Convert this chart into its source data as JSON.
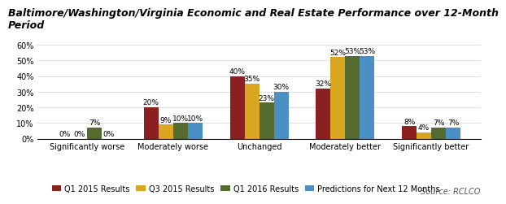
{
  "title_line1": "Baltimore/Washington/Virginia Economic and Real Estate Performance over 12-Month",
  "title_line2": "Period",
  "categories": [
    "Significantly worse",
    "Moderately worse",
    "Unchanged",
    "Moderately better",
    "Significantly better"
  ],
  "series": {
    "Q1 2015 Results": [
      0,
      20,
      40,
      32,
      8
    ],
    "Q3 2015 Results": [
      0,
      9,
      35,
      52,
      4
    ],
    "Q1 2016 Results": [
      7,
      10,
      23,
      53,
      7
    ],
    "Predictions for Next 12 Months": [
      0,
      10,
      30,
      53,
      7
    ]
  },
  "series_order": [
    "Q1 2015 Results",
    "Q3 2015 Results",
    "Q1 2016 Results",
    "Predictions for Next 12 Months"
  ],
  "colors": {
    "Q1 2015 Results": "#8B2020",
    "Q3 2015 Results": "#DAA520",
    "Q1 2016 Results": "#556B2F",
    "Predictions for Next 12 Months": "#4A90C4"
  },
  "ylim": [
    0,
    65
  ],
  "yticks": [
    0,
    10,
    20,
    30,
    40,
    50,
    60
  ],
  "source": "Source: RCLCO",
  "bar_width": 0.17,
  "title_fontsize": 9.0,
  "tick_fontsize": 7.0,
  "label_fontsize": 6.5,
  "legend_fontsize": 7.0,
  "source_fontsize": 7.0
}
